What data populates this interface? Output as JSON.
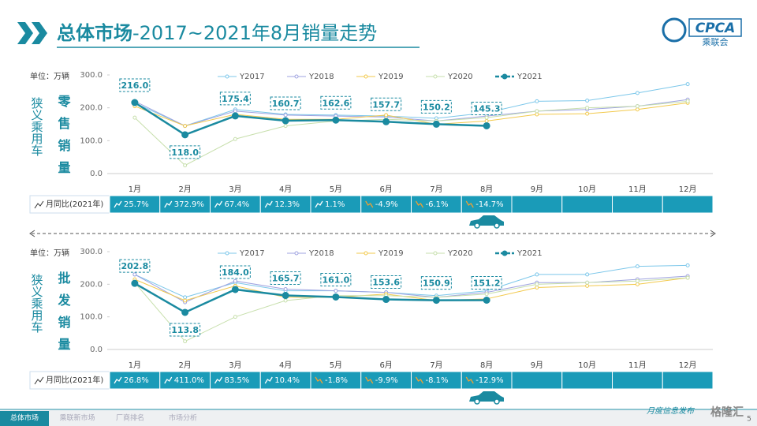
{
  "header": {
    "title_main": "总体市场",
    "title_rest": "-2017~2021年8月销量走势",
    "logo": "CPCA",
    "logo_sub": "乘联会"
  },
  "chart_data": [
    {
      "type": "line",
      "side_label": "狭义乘用车",
      "metric_label": "零售销量",
      "unit": "单位：万辆",
      "categories": [
        "1月",
        "2月",
        "3月",
        "4月",
        "5月",
        "6月",
        "7月",
        "8月",
        "9月",
        "10月",
        "11月",
        "12月"
      ],
      "ylim": [
        0,
        300
      ],
      "yticks": [
        {
          "value": 0,
          "label": "0.0"
        },
        {
          "value": 100,
          "label": "100.0"
        },
        {
          "value": 200,
          "label": "200.0"
        },
        {
          "value": 300,
          "label": "300.0"
        }
      ],
      "series": [
        {
          "name": "Y2017",
          "color": "#7cc7ea",
          "values": [
            215,
            145,
            195,
            180,
            178,
            175,
            168,
            185,
            220,
            222,
            245,
            272
          ]
        },
        {
          "name": "Y2018",
          "color": "#9fa3e0",
          "values": [
            220,
            145,
            190,
            178,
            175,
            172,
            160,
            175,
            190,
            195,
            205,
            225
          ]
        },
        {
          "name": "Y2019",
          "color": "#f2c94c",
          "values": [
            205,
            145,
            180,
            165,
            165,
            178,
            150,
            160,
            180,
            182,
            195,
            215
          ]
        },
        {
          "name": "Y2020",
          "color": "#c7dfac",
          "values": [
            170,
            25,
            105,
            145,
            160,
            165,
            160,
            170,
            190,
            200,
            205,
            220
          ]
        },
        {
          "name": "Y2021",
          "color": "#1a8aa0",
          "values": [
            216.0,
            118.0,
            175.4,
            160.7,
            162.6,
            157.7,
            150.2,
            145.3,
            null,
            null,
            null,
            null
          ],
          "value_labels": [
            "216.0",
            "118.0",
            "175.4",
            "160.7",
            "162.6",
            "157.7",
            "150.2",
            "145.3",
            null,
            null,
            null,
            null
          ]
        }
      ],
      "yoy_label": "月同比(2021年)",
      "yoy": [
        "25.7%",
        "372.9%",
        "67.4%",
        "12.3%",
        "1.1%",
        "-4.9%",
        "-6.1%",
        "-14.7%",
        null,
        null,
        null,
        null
      ]
    },
    {
      "type": "line",
      "side_label": "狭义乘用车",
      "metric_label": "批发销量",
      "unit": "单位：万辆",
      "categories": [
        "1月",
        "2月",
        "3月",
        "4月",
        "5月",
        "6月",
        "7月",
        "8月",
        "9月",
        "10月",
        "11月",
        "12月"
      ],
      "ylim": [
        0,
        300
      ],
      "yticks": [
        {
          "value": 0,
          "label": "0.0"
        },
        {
          "value": 100,
          "label": "100.0"
        },
        {
          "value": 200,
          "label": "200.0"
        },
        {
          "value": 300,
          "label": "300.0"
        }
      ],
      "series": [
        {
          "name": "Y2017",
          "color": "#7cc7ea",
          "values": [
            230,
            160,
            205,
            180,
            180,
            175,
            165,
            180,
            230,
            230,
            255,
            258
          ]
        },
        {
          "name": "Y2018",
          "color": "#9fa3e0",
          "values": [
            230,
            145,
            210,
            185,
            180,
            175,
            160,
            175,
            205,
            205,
            215,
            225
          ]
        },
        {
          "name": "Y2019",
          "color": "#f2c94c",
          "values": [
            215,
            150,
            195,
            160,
            160,
            170,
            150,
            155,
            190,
            195,
            200,
            220
          ]
        },
        {
          "name": "Y2020",
          "color": "#c7dfac",
          "values": [
            205,
            25,
            100,
            150,
            165,
            165,
            160,
            170,
            200,
            205,
            210,
            220
          ]
        },
        {
          "name": "Y2021",
          "color": "#1a8aa0",
          "values": [
            202.8,
            113.8,
            184.0,
            165.7,
            161.0,
            153.6,
            150.9,
            151.2,
            null,
            null,
            null,
            null
          ],
          "value_labels": [
            "202.8",
            "113.8",
            "184.0",
            "165.7",
            "161.0",
            "153.6",
            "150.9",
            "151.2",
            null,
            null,
            null,
            null
          ]
        }
      ],
      "yoy_label": "月同比(2021年)",
      "yoy": [
        "26.8%",
        "411.0%",
        "83.5%",
        "10.4%",
        "-1.8%",
        "-9.9%",
        "-8.1%",
        "-12.9%",
        null,
        null,
        null,
        null
      ]
    }
  ],
  "footer": {
    "tabs": [
      "总体市场",
      "乘联新市场",
      "厂商排名",
      "市场分析"
    ],
    "note": "月度信息发布",
    "page": "5",
    "watermark": "格隆汇"
  }
}
